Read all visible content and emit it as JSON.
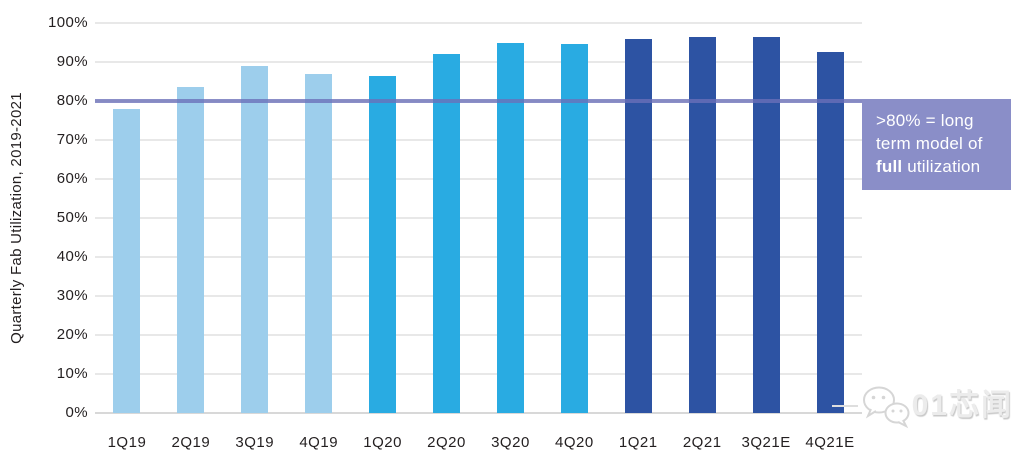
{
  "colors": {
    "light_blue": "#9DCEEC",
    "mid_blue": "#29ABE2",
    "dark_blue": "#2D53A3",
    "line_purple": "#6A6FB9",
    "box_purple": "#8A8EC8",
    "grid": "#E8E8E8",
    "text": "#231F20",
    "watermark_gray": "#DEDEDE"
  },
  "chart_data": {
    "type": "bar",
    "title": "",
    "ylabel": "Quarterly Fab Utilization, 2019-2021",
    "xlabel": "",
    "ylim": [
      0,
      100
    ],
    "ytick_step": 10,
    "ytick_labels": [
      "0%",
      "10%",
      "20%",
      "30%",
      "40%",
      "50%",
      "60%",
      "70%",
      "80%",
      "90%",
      "100%"
    ],
    "grid": true,
    "legend_position": "none",
    "categories": [
      "1Q19",
      "2Q19",
      "3Q19",
      "4Q19",
      "1Q20",
      "2Q20",
      "3Q20",
      "4Q20",
      "1Q21",
      "2Q21",
      "3Q21E",
      "4Q21E"
    ],
    "values": [
      78,
      83.5,
      89,
      87,
      86.5,
      92,
      95,
      94.5,
      96,
      96.5,
      96.5,
      92.5
    ],
    "bar_colors": [
      "light_blue",
      "light_blue",
      "light_blue",
      "light_blue",
      "mid_blue",
      "mid_blue",
      "mid_blue",
      "mid_blue",
      "dark_blue",
      "dark_blue",
      "dark_blue",
      "dark_blue"
    ],
    "reference_line": {
      "value": 80,
      "color": "#6A6FB9",
      "label": ">80% = long term model of full utilization"
    }
  },
  "annotation": {
    "line1": ">80% = long",
    "line2": "term model of",
    "line3_bold": "full",
    "line3_rest": " utilization"
  },
  "watermark": {
    "label": "01芯闻",
    "icon": "wechat-chat-bubbles"
  }
}
